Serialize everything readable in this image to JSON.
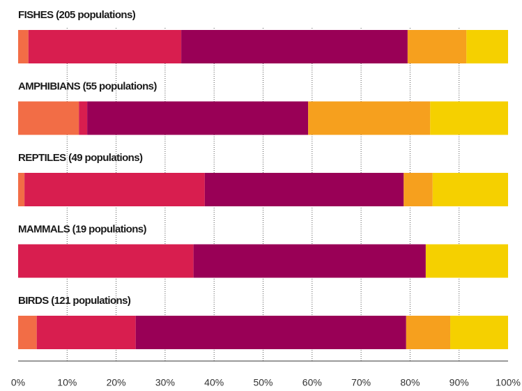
{
  "chart_data": {
    "type": "stacked-bar-horizontal",
    "categories": [
      "FISHES (205 populations)",
      "AMPHIBIANS (55 populations)",
      "REPTILES (49 populations)",
      "MAMMALS (19 populations)",
      "BIRDS (121 populations)"
    ],
    "series": [
      {
        "color": "#f26d46",
        "values": [
          2.1,
          12.4,
          1.3,
          0,
          3.8
        ]
      },
      {
        "color": "#d81e4f",
        "values": [
          31.2,
          1.7,
          36.8,
          35.8,
          20.2
        ]
      },
      {
        "color": "#990056",
        "values": [
          46.2,
          45.1,
          40.6,
          47.4,
          55.2
        ]
      },
      {
        "color": "#f6a01e",
        "values": [
          12,
          24.9,
          5.9,
          0,
          9
        ]
      },
      {
        "color": "#f5d000",
        "values": [
          8.5,
          15.9,
          15.4,
          16.8,
          11.8
        ]
      }
    ],
    "xlim": [
      0,
      100
    ],
    "xticks": [
      {
        "value": 0,
        "label": "0%"
      },
      {
        "value": 10,
        "label": "10%"
      },
      {
        "value": 20,
        "label": "20%"
      },
      {
        "value": 30,
        "label": "30%"
      },
      {
        "value": 40,
        "label": "40%"
      },
      {
        "value": 50,
        "label": "50%"
      },
      {
        "value": 60,
        "label": "60%"
      },
      {
        "value": 70,
        "label": "70%"
      },
      {
        "value": 80,
        "label": "80%"
      },
      {
        "value": 90,
        "label": "90%"
      },
      {
        "value": 100,
        "label": "100%"
      }
    ],
    "grid": true
  }
}
